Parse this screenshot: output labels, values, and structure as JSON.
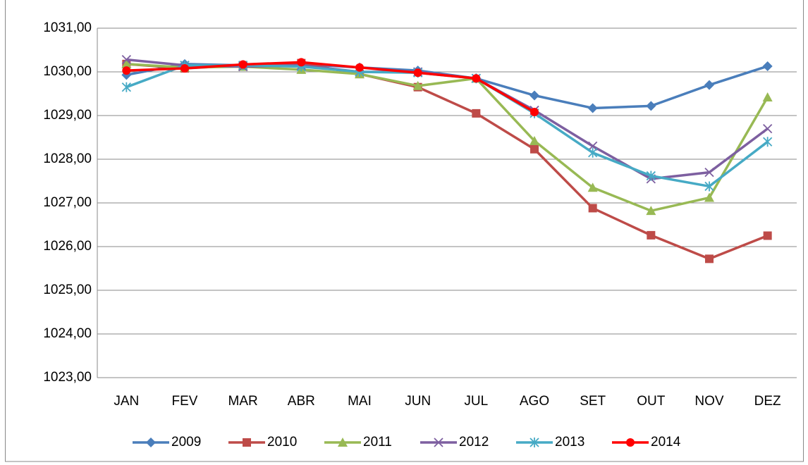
{
  "chart_data": {
    "type": "line",
    "categories": [
      "JAN",
      "FEV",
      "MAR",
      "ABR",
      "MAI",
      "JUN",
      "JUL",
      "AGO",
      "SET",
      "OUT",
      "NOV",
      "DEZ"
    ],
    "series": [
      {
        "name": "2009",
        "color": "#4a7ebb",
        "marker": "diamond",
        "values": [
          1029.93,
          1030.18,
          1030.15,
          1030.18,
          1030.1,
          1030.03,
          1029.85,
          1029.46,
          1029.17,
          1029.22,
          1029.7,
          1030.13
        ]
      },
      {
        "name": "2010",
        "color": "#be4b48",
        "marker": "square",
        "values": [
          1030.18,
          1030.08,
          1030.15,
          1030.2,
          1029.95,
          1029.65,
          1029.05,
          1028.23,
          1026.88,
          1026.26,
          1025.72,
          1026.25
        ]
      },
      {
        "name": "2011",
        "color": "#98b954",
        "marker": "triangle",
        "values": [
          1030.18,
          1030.1,
          1030.12,
          1030.05,
          1029.95,
          1029.68,
          1029.85,
          1028.42,
          1027.35,
          1026.82,
          1027.12,
          1029.42
        ]
      },
      {
        "name": "2012",
        "color": "#7d5fa0",
        "marker": "x",
        "values": [
          1030.28,
          1030.15,
          1030.12,
          1030.15,
          1030.0,
          1030.0,
          1029.85,
          1029.12,
          1028.3,
          1027.55,
          1027.7,
          1028.7
        ]
      },
      {
        "name": "2013",
        "color": "#46aac5",
        "marker": "star",
        "values": [
          1029.65,
          1030.15,
          1030.15,
          1030.12,
          1030.0,
          1029.98,
          1029.85,
          1029.05,
          1028.15,
          1027.62,
          1027.38,
          1028.4
        ]
      },
      {
        "name": "2014",
        "color": "#ff0000",
        "marker": "circle",
        "values": [
          1030.03,
          1030.08,
          1030.17,
          1030.22,
          1030.1,
          1029.98,
          1029.85,
          1029.08,
          null,
          null,
          null,
          null
        ]
      }
    ],
    "ylim": [
      1023,
      1031
    ],
    "yticks": [
      {
        "value": 1023,
        "label": "1023,00"
      },
      {
        "value": 1024,
        "label": "1024,00"
      },
      {
        "value": 1025,
        "label": "1025,00"
      },
      {
        "value": 1026,
        "label": "1026,00"
      },
      {
        "value": 1027,
        "label": "1027,00"
      },
      {
        "value": 1028,
        "label": "1028,00"
      },
      {
        "value": 1029,
        "label": "1029,00"
      },
      {
        "value": 1030,
        "label": "1030,00"
      },
      {
        "value": 1031,
        "label": "1031,00"
      }
    ],
    "grid": true,
    "legend": "bottom"
  }
}
